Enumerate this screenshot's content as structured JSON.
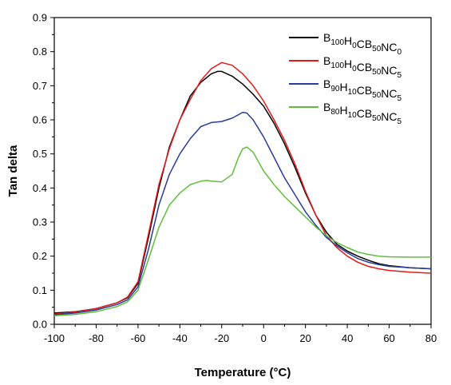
{
  "chart_data": {
    "type": "line",
    "xlabel": "Temperature (°C)",
    "ylabel": "Tan delta",
    "xlim": [
      -100,
      80
    ],
    "ylim": [
      0.0,
      0.9
    ],
    "xticks": [
      "-100",
      "-80",
      "-60",
      "-40",
      "-20",
      "0",
      "20",
      "40",
      "60",
      "80"
    ],
    "yticks": [
      "0.0",
      "0.1",
      "0.2",
      "0.3",
      "0.4",
      "0.5",
      "0.6",
      "0.7",
      "0.8",
      "0.9"
    ],
    "grid": false,
    "legend_position": "top-right",
    "series": [
      {
        "name": "B100H0CB50NC0",
        "legend_parts": [
          [
            "B",
            "100"
          ],
          [
            "H",
            "0"
          ],
          [
            "CB",
            "50"
          ],
          [
            "NC",
            "0"
          ]
        ],
        "color": "#000000",
        "x": [
          -100,
          -90,
          -80,
          -70,
          -65,
          -60,
          -55,
          -50,
          -45,
          -40,
          -35,
          -30,
          -25,
          -22,
          -20,
          -15,
          -10,
          -5,
          0,
          5,
          10,
          15,
          20,
          25,
          30,
          35,
          40,
          45,
          50,
          55,
          60,
          70,
          80
        ],
        "y": [
          0.033,
          0.037,
          0.046,
          0.063,
          0.078,
          0.12,
          0.255,
          0.4,
          0.52,
          0.6,
          0.67,
          0.71,
          0.735,
          0.742,
          0.742,
          0.728,
          0.705,
          0.675,
          0.64,
          0.59,
          0.53,
          0.46,
          0.385,
          0.32,
          0.27,
          0.235,
          0.215,
          0.2,
          0.188,
          0.178,
          0.172,
          0.166,
          0.163
        ]
      },
      {
        "name": "B100H0CB50NC5",
        "legend_parts": [
          [
            "B",
            "100"
          ],
          [
            "H",
            "0"
          ],
          [
            "CB",
            "50"
          ],
          [
            "NC",
            "5"
          ]
        ],
        "color": "#e41a1c",
        "x": [
          -100,
          -90,
          -80,
          -70,
          -65,
          -60,
          -55,
          -50,
          -45,
          -40,
          -35,
          -30,
          -25,
          -20,
          -15,
          -10,
          -5,
          0,
          5,
          10,
          15,
          20,
          25,
          30,
          35,
          40,
          45,
          50,
          55,
          60,
          70,
          80
        ],
        "y": [
          0.03,
          0.036,
          0.046,
          0.063,
          0.08,
          0.125,
          0.265,
          0.41,
          0.515,
          0.6,
          0.66,
          0.715,
          0.75,
          0.768,
          0.76,
          0.735,
          0.7,
          0.655,
          0.6,
          0.54,
          0.47,
          0.39,
          0.32,
          0.26,
          0.225,
          0.2,
          0.182,
          0.17,
          0.163,
          0.158,
          0.153,
          0.15
        ]
      },
      {
        "name": "B90H10CB50NC5",
        "legend_parts": [
          [
            "B",
            "90"
          ],
          [
            "H",
            "10"
          ],
          [
            "CB",
            "50"
          ],
          [
            "NC",
            "5"
          ]
        ],
        "color": "#2a3c99",
        "x": [
          -100,
          -90,
          -80,
          -70,
          -65,
          -60,
          -55,
          -50,
          -45,
          -40,
          -35,
          -30,
          -25,
          -20,
          -15,
          -12,
          -10,
          -8,
          -5,
          0,
          5,
          10,
          15,
          20,
          25,
          30,
          35,
          40,
          45,
          50,
          55,
          60,
          70,
          80
        ],
        "y": [
          0.028,
          0.033,
          0.042,
          0.058,
          0.072,
          0.11,
          0.22,
          0.35,
          0.44,
          0.5,
          0.545,
          0.58,
          0.592,
          0.595,
          0.605,
          0.615,
          0.622,
          0.62,
          0.6,
          0.55,
          0.49,
          0.43,
          0.38,
          0.33,
          0.29,
          0.255,
          0.23,
          0.21,
          0.193,
          0.182,
          0.175,
          0.17,
          0.166,
          0.163
        ]
      },
      {
        "name": "B80H10CB50NC5",
        "legend_parts": [
          [
            "B",
            "80"
          ],
          [
            "H",
            "10"
          ],
          [
            "CB",
            "50"
          ],
          [
            "NC",
            "5"
          ]
        ],
        "color": "#5fbf3a",
        "x": [
          -100,
          -90,
          -80,
          -70,
          -65,
          -60,
          -55,
          -50,
          -45,
          -40,
          -35,
          -30,
          -27,
          -25,
          -20,
          -15,
          -12,
          -10,
          -8,
          -5,
          0,
          5,
          10,
          15,
          20,
          25,
          30,
          35,
          40,
          45,
          50,
          55,
          60,
          70,
          80
        ],
        "y": [
          0.025,
          0.029,
          0.037,
          0.052,
          0.066,
          0.1,
          0.19,
          0.285,
          0.35,
          0.385,
          0.41,
          0.42,
          0.422,
          0.42,
          0.418,
          0.44,
          0.49,
          0.515,
          0.52,
          0.505,
          0.45,
          0.41,
          0.375,
          0.345,
          0.315,
          0.285,
          0.26,
          0.24,
          0.225,
          0.212,
          0.205,
          0.2,
          0.198,
          0.197,
          0.197
        ]
      }
    ]
  }
}
